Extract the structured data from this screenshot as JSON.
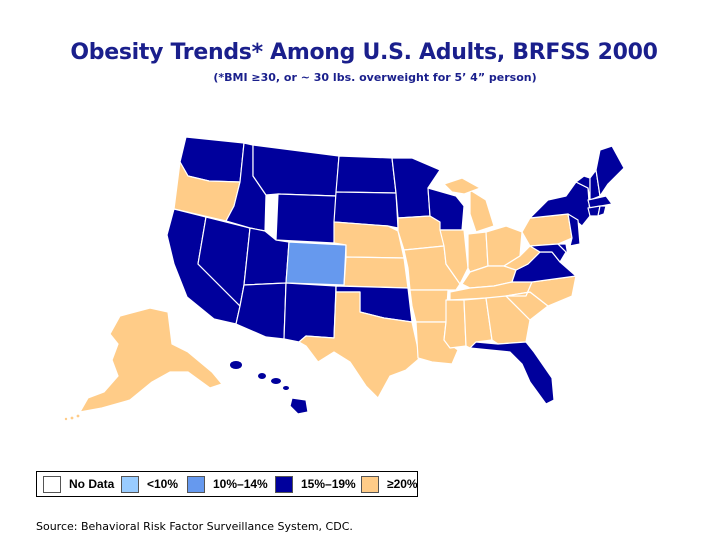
{
  "title": "Obesity Trends* Among U.S. Adults, BRFSS 2000",
  "subtitle": "(*BMI ≥30, or ~ 30 lbs. overweight for 5’ 4” person)",
  "source": "Source: Behavioral Risk Factor Surveillance System, CDC.",
  "legend": [
    {
      "label": "No Data",
      "color": "#ffffff"
    },
    {
      "label": "<10%",
      "color": "#99ccff"
    },
    {
      "label": "10%–14%",
      "color": "#6699ee"
    },
    {
      "label": "15%–19%",
      "color": "#00009c"
    },
    {
      "label": "≥20%",
      "color": "#ffcc88"
    }
  ],
  "colors": {
    "c15_19": "#00009c",
    "c20plus": "#ffcc88",
    "c10_14": "#6699ee",
    "border": "#ffffff"
  }
}
